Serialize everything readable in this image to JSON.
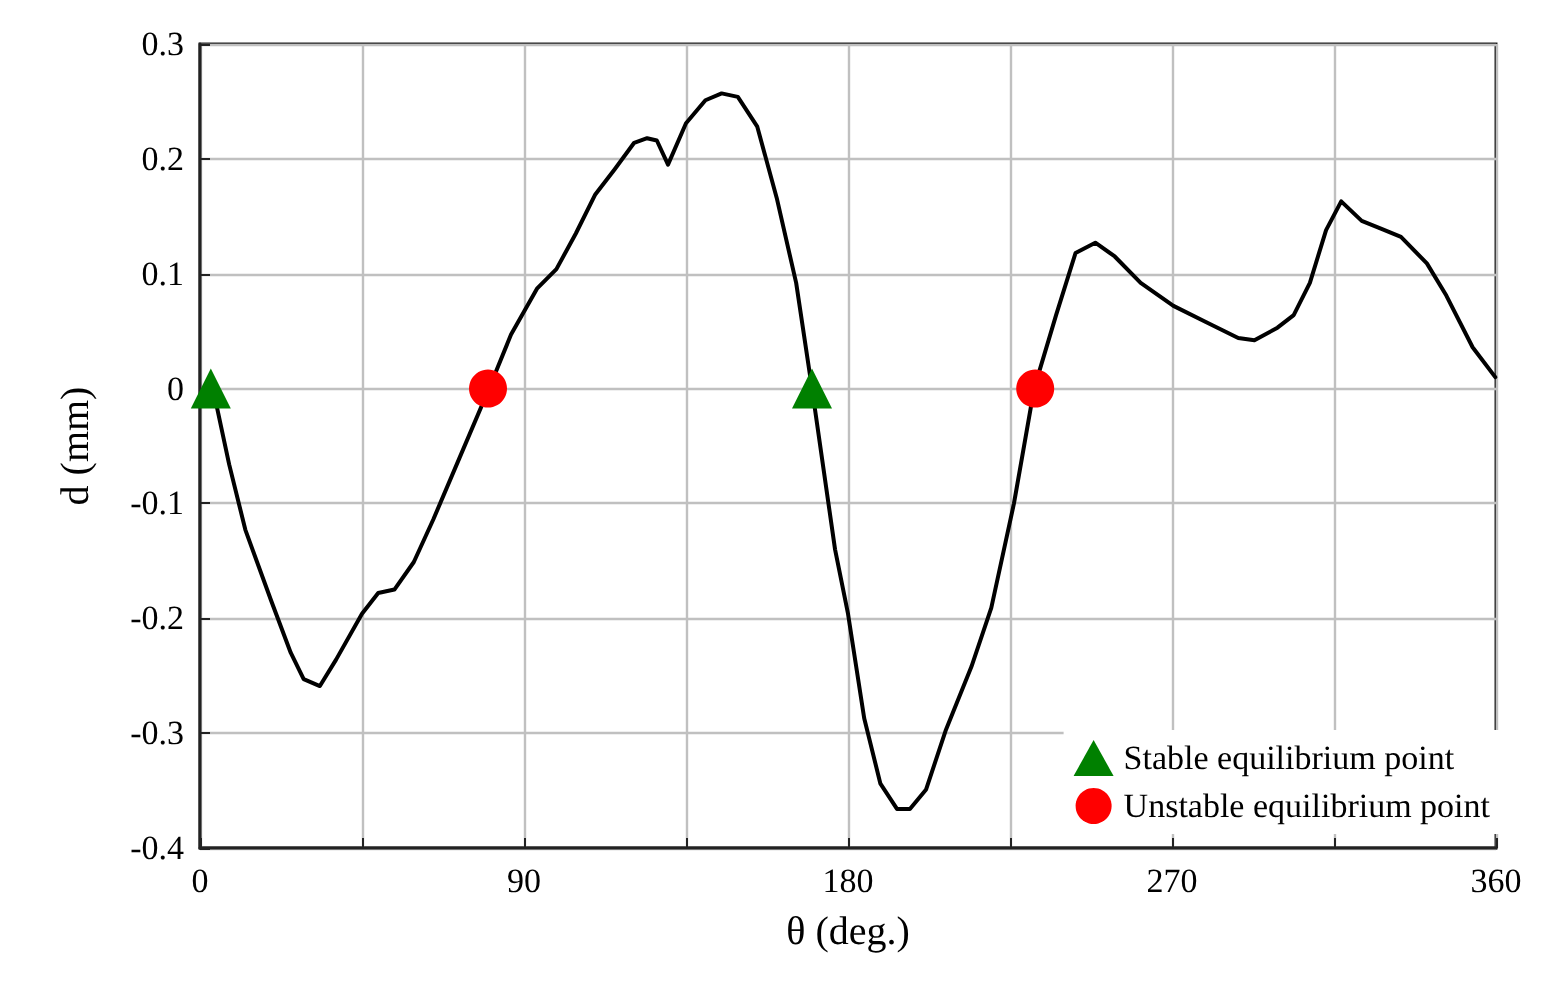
{
  "chart_data": {
    "type": "line",
    "xlabel": "θ (deg.)",
    "ylabel": "d (mm)",
    "xlim": [
      0,
      360
    ],
    "ylim": [
      -0.4,
      0.3
    ],
    "xticks": [
      0,
      {
        "value": 45,
        "label": null
      },
      90,
      {
        "value": 135,
        "label": null
      },
      180,
      {
        "value": 225,
        "label": null
      },
      270,
      {
        "value": 315,
        "label": null
      },
      360
    ],
    "yticks": [
      -0.4,
      -0.3,
      -0.2,
      -0.1,
      0,
      0.1,
      0.2,
      0.3
    ],
    "grid": true,
    "legend": "bottom right",
    "series": [
      {
        "color": "#000000",
        "marker": "none",
        "line_style": "solid",
        "x": [
          3.6,
          8.1,
          12.6,
          19.8,
          25.2,
          28.8,
          33.3,
          37.8,
          45,
          49.5,
          54,
          59.4,
          64.8,
          72,
          80.3,
          86.4,
          93.6,
          99,
          104.4,
          109.8,
          115.2,
          120.6,
          124.2,
          126.9,
          130,
          135,
          140.4,
          144.9,
          149.4,
          154.8,
          160.2,
          165.6,
          170,
          176.4,
          180,
          184.5,
          189,
          193.6,
          197.2,
          201.7,
          207.1,
          214.3,
          219.8,
          226.1,
          231.7,
          237.8,
          243.2,
          248.7,
          254.1,
          261.3,
          270.4,
          279.4,
          288.4,
          292.9,
          299.3,
          303.8,
          308.3,
          312.8,
          317,
          322.7,
          328.2,
          333.6,
          340.8,
          346.2,
          353.5,
          359.8
        ],
        "values": [
          0,
          -0.066,
          -0.123,
          -0.185,
          -0.23,
          -0.253,
          -0.259,
          -0.236,
          -0.196,
          -0.178,
          -0.175,
          -0.151,
          -0.114,
          -0.061,
          0,
          0.047,
          0.087,
          0.104,
          0.135,
          0.169,
          0.191,
          0.214,
          0.218,
          0.216,
          0.195,
          0.231,
          0.251,
          0.257,
          0.254,
          0.228,
          0.166,
          0.092,
          0,
          -0.14,
          -0.196,
          -0.287,
          -0.344,
          -0.366,
          -0.366,
          -0.349,
          -0.298,
          -0.242,
          -0.191,
          -0.1,
          0,
          0.064,
          0.118,
          0.127,
          0.115,
          0.092,
          0.072,
          0.058,
          0.044,
          0.042,
          0.053,
          0.064,
          0.092,
          0.138,
          0.163,
          0.146,
          0.139,
          0.132,
          0.109,
          0.081,
          0.036,
          0.01
        ]
      },
      {
        "type": "scatter",
        "name": "Stable equilibrium point",
        "color": "#008000",
        "marker": "triangle",
        "x": [
          3,
          170
        ],
        "values": [
          0,
          0
        ]
      },
      {
        "type": "scatter",
        "name": "Unstable equilibrium point",
        "color": "#ff0000",
        "marker": "circle",
        "x": [
          80,
          232
        ],
        "values": [
          0,
          0
        ]
      }
    ]
  }
}
